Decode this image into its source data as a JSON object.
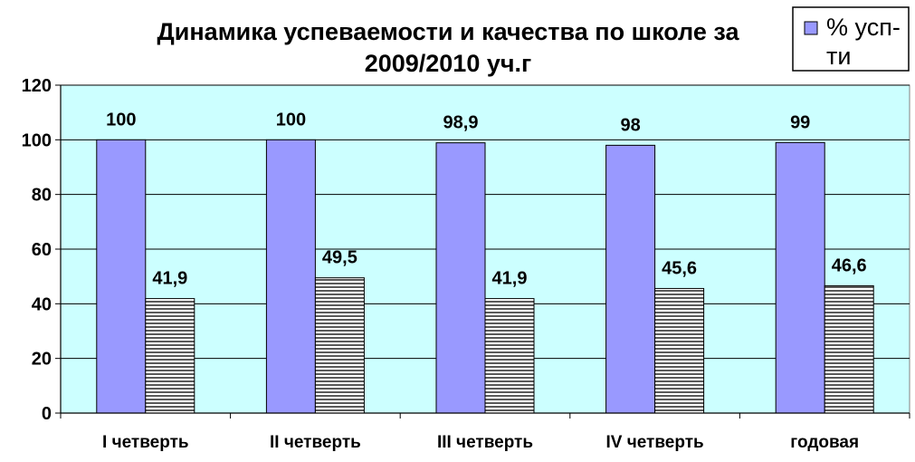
{
  "chart_data": {
    "type": "bar",
    "title_lines": [
      "Динамика успеваемости и качества по школе за",
      "2009/2010 уч.г"
    ],
    "categories": [
      "I четверть",
      "II четверть",
      "III четверть",
      "IV четверть",
      "годовая"
    ],
    "series": [
      {
        "name": "% усп-ти",
        "values": [
          100,
          100,
          98.9,
          98,
          99
        ],
        "labels": [
          "100",
          "100",
          "98,9",
          "98",
          "99"
        ],
        "color": "#9999ff",
        "pattern": "solid"
      },
      {
        "values": [
          41.9,
          49.5,
          41.9,
          45.6,
          46.6
        ],
        "labels": [
          "41,9",
          "49,5",
          "41,9",
          "45,6",
          "46,6"
        ],
        "color": "#ffffff",
        "pattern": "horizontal-stripes"
      }
    ],
    "legend": {
      "placement": "top-right",
      "label_lines": [
        "% усп-",
        "ти"
      ]
    },
    "ylim": [
      0,
      120
    ],
    "yticks": [
      "0",
      "20",
      "40",
      "60",
      "80",
      "100",
      "120"
    ],
    "grid": true,
    "plot_background": "#ccffff"
  }
}
